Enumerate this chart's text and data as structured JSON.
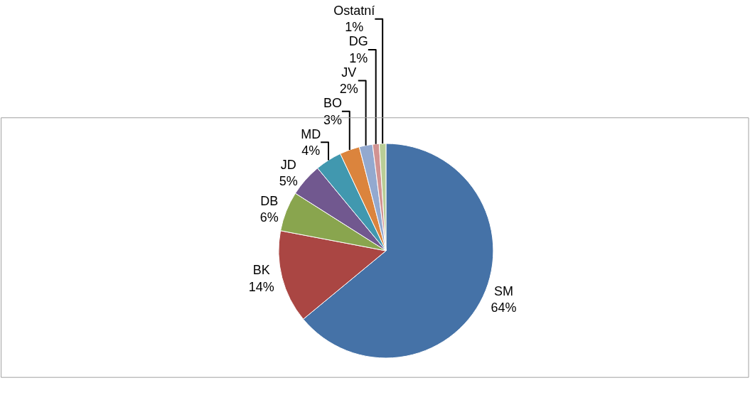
{
  "chart_data": {
    "type": "pie",
    "categories": [
      "SM",
      "BK",
      "DB",
      "JD",
      "MD",
      "BO",
      "JV",
      "DG",
      "Ostatní"
    ],
    "values": [
      64,
      14,
      6,
      5,
      4,
      3,
      2,
      1,
      1
    ],
    "value_labels": [
      "64%",
      "14%",
      "6%",
      "5%",
      "4%",
      "3%",
      "2%",
      "1%",
      "1%"
    ],
    "colors": [
      "#4572a7",
      "#aa4643",
      "#89a54e",
      "#71588f",
      "#4198af",
      "#db843d",
      "#93a9cf",
      "#d19392",
      "#b9cd96"
    ],
    "legend": false
  }
}
